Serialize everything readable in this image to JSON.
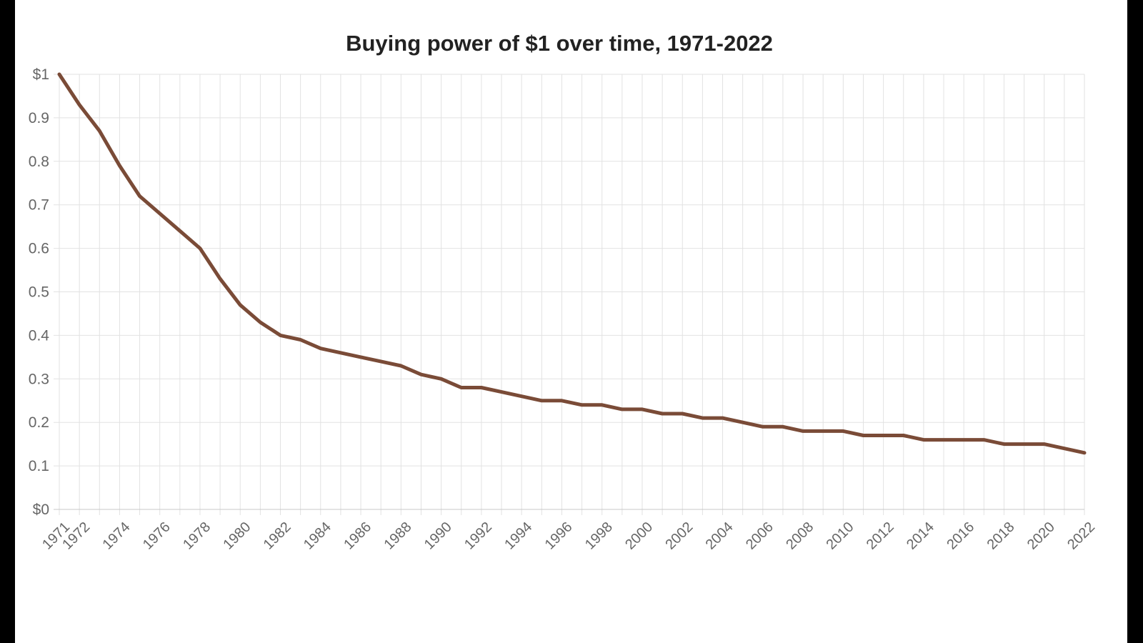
{
  "chart_data": {
    "type": "line",
    "title": "Buying power of $1 over time, 1971-2022",
    "xlabel": "",
    "ylabel": "",
    "grid": true,
    "legend": "none",
    "colors": {
      "line": "#7a4b37",
      "grid": "#e2e2e2",
      "axis": "#c8c8c8",
      "tick_text": "#666666",
      "title": "#222222"
    },
    "xlim": [
      1971,
      2022
    ],
    "ylim": [
      0,
      1
    ],
    "y_ticks": [
      {
        "value": 0,
        "label": "$0"
      },
      {
        "value": 0.1,
        "label": "0.1"
      },
      {
        "value": 0.2,
        "label": "0.2"
      },
      {
        "value": 0.3,
        "label": "0.3"
      },
      {
        "value": 0.4,
        "label": "0.4"
      },
      {
        "value": 0.5,
        "label": "0.5"
      },
      {
        "value": 0.6,
        "label": "0.6"
      },
      {
        "value": 0.7,
        "label": "0.7"
      },
      {
        "value": 0.8,
        "label": "0.8"
      },
      {
        "value": 0.9,
        "label": "0.9"
      },
      {
        "value": 1,
        "label": "$1"
      }
    ],
    "x_tick_labels": [
      "1971",
      "1972",
      "1974",
      "1976",
      "1978",
      "1980",
      "1982",
      "1984",
      "1986",
      "1988",
      "1990",
      "1992",
      "1994",
      "1996",
      "1998",
      "2000",
      "2002",
      "2004",
      "2006",
      "2008",
      "2010",
      "2012",
      "2014",
      "2016",
      "2018",
      "2020",
      "2022"
    ],
    "series": [
      {
        "x": [
          1971,
          1972,
          1973,
          1974,
          1975,
          1976,
          1977,
          1978,
          1979,
          1980,
          1981,
          1982,
          1983,
          1984,
          1985,
          1986,
          1987,
          1988,
          1989,
          1990,
          1991,
          1992,
          1993,
          1994,
          1995,
          1996,
          1997,
          1998,
          1999,
          2000,
          2001,
          2002,
          2003,
          2004,
          2005,
          2006,
          2007,
          2008,
          2009,
          2010,
          2011,
          2012,
          2013,
          2014,
          2015,
          2016,
          2017,
          2018,
          2019,
          2020,
          2021,
          2022
        ],
        "values": [
          1.0,
          0.93,
          0.87,
          0.79,
          0.72,
          0.68,
          0.64,
          0.6,
          0.53,
          0.47,
          0.43,
          0.4,
          0.39,
          0.37,
          0.36,
          0.35,
          0.34,
          0.33,
          0.31,
          0.3,
          0.28,
          0.28,
          0.27,
          0.26,
          0.25,
          0.25,
          0.24,
          0.24,
          0.23,
          0.23,
          0.22,
          0.22,
          0.21,
          0.21,
          0.2,
          0.19,
          0.19,
          0.18,
          0.18,
          0.18,
          0.17,
          0.17,
          0.17,
          0.16,
          0.16,
          0.16,
          0.16,
          0.15,
          0.15,
          0.15,
          0.14,
          0.13
        ]
      }
    ]
  }
}
